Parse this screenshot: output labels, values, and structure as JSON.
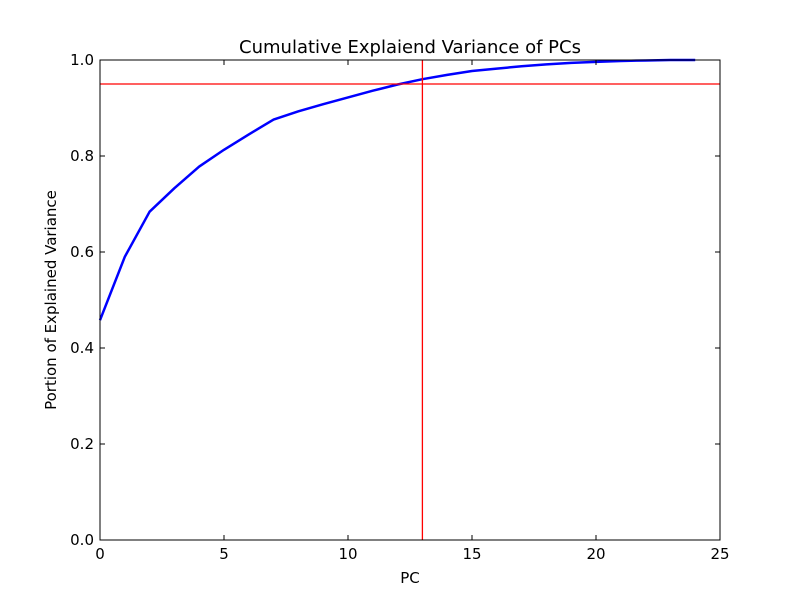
{
  "chart_data": {
    "type": "line",
    "title": "Cumulative Explaiend Variance of PCs",
    "xlabel": "PC",
    "ylabel": "Portion of Explained Variance",
    "xlim": [
      0,
      25
    ],
    "ylim": [
      0.0,
      1.0
    ],
    "x_ticks": [
      "0",
      "5",
      "10",
      "15",
      "20",
      "25"
    ],
    "y_ticks": [
      "0.0",
      "0.2",
      "0.4",
      "0.6",
      "0.8",
      "1.0"
    ],
    "grid": false,
    "series": [
      {
        "color": "#0000ff",
        "x": [
          0,
          1,
          2,
          3,
          4,
          5,
          6,
          7,
          8,
          9,
          10,
          11,
          12,
          13,
          14,
          15,
          16,
          17,
          18,
          19,
          20,
          21,
          22,
          23,
          24
        ],
        "y": [
          0.458,
          0.59,
          0.684,
          0.733,
          0.778,
          0.813,
          0.845,
          0.876,
          0.893,
          0.908,
          0.922,
          0.936,
          0.949,
          0.96,
          0.969,
          0.977,
          0.982,
          0.987,
          0.991,
          0.994,
          0.996,
          0.998,
          0.999,
          1.0,
          1.0
        ]
      }
    ],
    "reference_lines": [
      {
        "orientation": "horizontal",
        "value": 0.95,
        "color": "#ff0000"
      },
      {
        "orientation": "vertical",
        "value": 13,
        "color": "#ff0000"
      }
    ]
  }
}
